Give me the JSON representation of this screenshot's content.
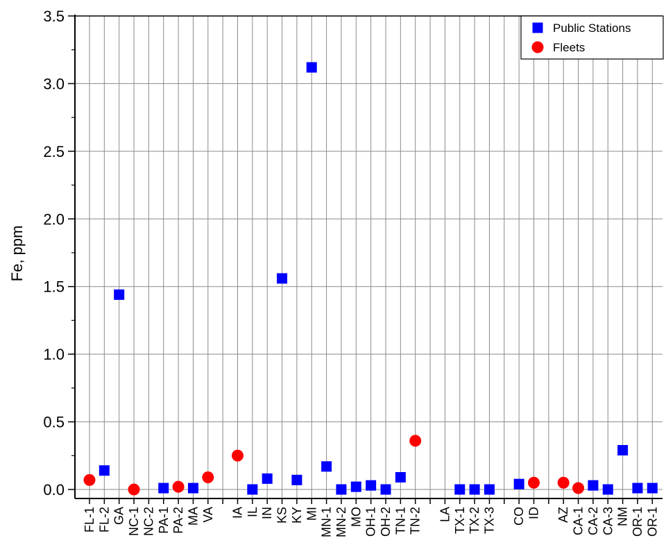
{
  "chart_data": {
    "type": "scatter",
    "title": "",
    "xlabel": "",
    "ylabel": "Fe, ppm",
    "ylim": [
      0,
      3.5
    ],
    "yticks": [
      "0.0",
      "0.5",
      "1.0",
      "1.5",
      "2.0",
      "2.5",
      "3.0",
      "3.5"
    ],
    "grid": true,
    "legend_position": "top-right",
    "categories": [
      "FL-1",
      "FL-2",
      "GA",
      "NC-1",
      "NC-2",
      "PA-1",
      "PA-2",
      "MA",
      "VA",
      "",
      "IA",
      "IL",
      "IN",
      "KS",
      "KY",
      "MI",
      "MN-1",
      "MN-2",
      "MO",
      "OH-1",
      "OH-2",
      "TN-1",
      "TN-2",
      "",
      "LA",
      "TX-1",
      "TX-2",
      "TX-3",
      "",
      "CO",
      "ID",
      "",
      "AZ",
      "CA-1",
      "CA-2",
      "CA-3",
      "NM",
      "OR-1",
      "OR-1"
    ],
    "series": [
      {
        "name": "Public Stations",
        "marker": "square",
        "color": "#0000FF",
        "points": [
          {
            "x": "FL-2",
            "y": 0.14
          },
          {
            "x": "GA",
            "y": 1.44
          },
          {
            "x": "PA-1",
            "y": 0.01
          },
          {
            "x": "MA",
            "y": 0.01
          },
          {
            "x": "IL",
            "y": 0.0
          },
          {
            "x": "IN",
            "y": 0.08
          },
          {
            "x": "KS",
            "y": 1.56
          },
          {
            "x": "KY",
            "y": 0.07
          },
          {
            "x": "MI",
            "y": 3.12
          },
          {
            "x": "MN-1",
            "y": 0.17
          },
          {
            "x": "MN-2",
            "y": 0.0
          },
          {
            "x": "MO",
            "y": 0.02
          },
          {
            "x": "OH-1",
            "y": 0.03
          },
          {
            "x": "OH-2",
            "y": 0.0
          },
          {
            "x": "TN-1",
            "y": 0.09
          },
          {
            "x": "TX-1",
            "y": 0.0
          },
          {
            "x": "TX-2",
            "y": 0.0
          },
          {
            "x": "TX-3",
            "y": 0.0
          },
          {
            "x": "CO",
            "y": 0.04
          },
          {
            "x": "CA-2",
            "y": 0.03
          },
          {
            "x": "CA-3",
            "y": 0.0
          },
          {
            "x": "NM",
            "y": 0.29
          },
          {
            "x": "OR-1",
            "y": 0.01
          },
          {
            "x": "OR-1",
            "y": 0.01
          }
        ]
      },
      {
        "name": "Fleets",
        "marker": "circle",
        "color": "#FF0000",
        "points": [
          {
            "x": "FL-1",
            "y": 0.07
          },
          {
            "x": "NC-1",
            "y": 0.0
          },
          {
            "x": "PA-2",
            "y": 0.02
          },
          {
            "x": "VA",
            "y": 0.09
          },
          {
            "x": "IA",
            "y": 0.25
          },
          {
            "x": "TN-2",
            "y": 0.36
          },
          {
            "x": "ID",
            "y": 0.05
          },
          {
            "x": "AZ",
            "y": 0.05
          },
          {
            "x": "CA-1",
            "y": 0.01
          }
        ]
      }
    ]
  }
}
